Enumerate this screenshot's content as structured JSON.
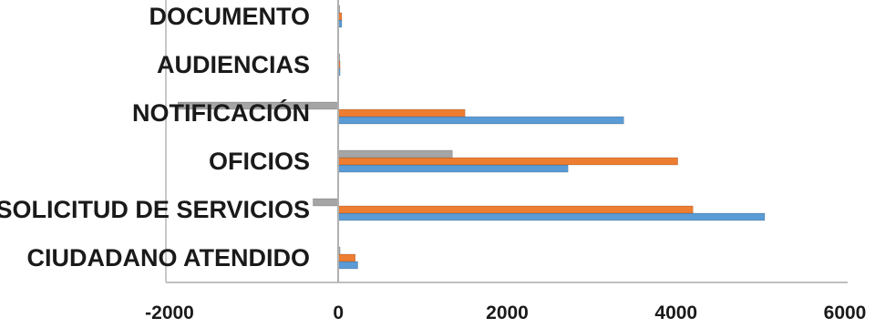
{
  "chart_data": {
    "type": "bar",
    "orientation": "horizontal",
    "categories": [
      "CIUDADANO ATENDIDO",
      "SOLICITUD DE SERVICIOS",
      "OFICIOS",
      "NOTIFICACIÓN",
      "AUDIENCIAS",
      "DOCUMENTO"
    ],
    "series": [
      {
        "color": "#5b9bd5",
        "values": [
          230,
          5050,
          2720,
          3380,
          20,
          40
        ]
      },
      {
        "color": "#ed7d31",
        "values": [
          200,
          4200,
          4020,
          1500,
          20,
          40
        ]
      },
      {
        "color": "#a5a5a5",
        "values": [
          20,
          -300,
          1350,
          -1900,
          0,
          0
        ]
      }
    ],
    "x_ticks": [
      "-2000",
      "0",
      "2000",
      "4000",
      "6000"
    ],
    "xlim": [
      -2000,
      6000
    ],
    "title": "",
    "xlabel": "",
    "ylabel": "",
    "grid": false,
    "legend": "none"
  }
}
